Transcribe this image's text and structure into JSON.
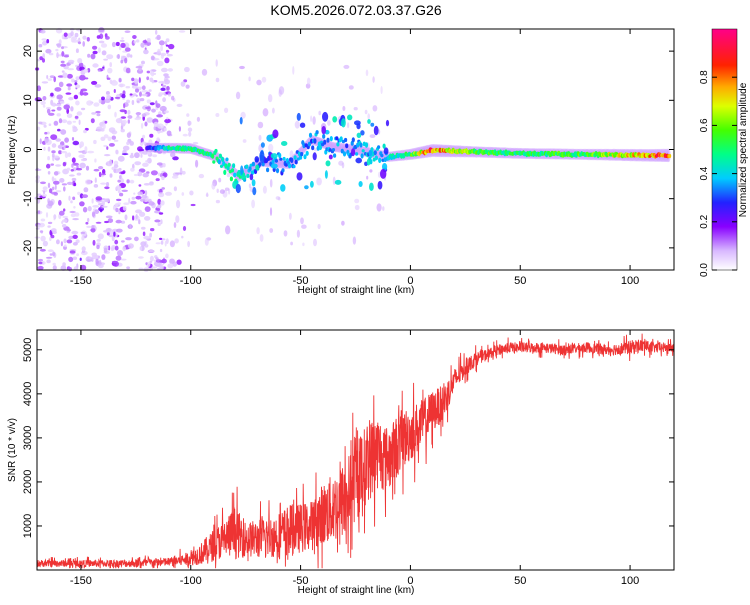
{
  "title": "KOM5.2026.072.03.37.G26",
  "chart_data": [
    {
      "type": "heatmap",
      "title": "KOM5.2026.072.03.37.G26",
      "xlabel": "Height of straight line (km)",
      "ylabel": "Frequency (Hz)",
      "xlim": [
        -170,
        120
      ],
      "ylim": [
        -24.5,
        24.5
      ],
      "xticks": [
        -150,
        -100,
        -50,
        0,
        50,
        100
      ],
      "yticks": [
        -20,
        -10,
        0,
        10,
        20
      ],
      "colorbar": {
        "label": "Normalized spectral amplitude",
        "range": [
          0,
          1
        ],
        "ticks": [
          0.0,
          0.2,
          0.4,
          0.6,
          0.8
        ]
      },
      "ridge": [
        {
          "x": -120,
          "f": 0.4,
          "a": 0.25
        },
        {
          "x": -110,
          "f": 0.3,
          "a": 0.45
        },
        {
          "x": -100,
          "f": 0.2,
          "a": 0.5
        },
        {
          "x": -88,
          "f": -1.5,
          "a": 0.45
        },
        {
          "x": -78,
          "f": -5.5,
          "a": 0.45
        },
        {
          "x": -68,
          "f": -2.5,
          "a": 0.3
        },
        {
          "x": -55,
          "f": -3.0,
          "a": 0.35
        },
        {
          "x": -45,
          "f": 2.0,
          "a": 0.35
        },
        {
          "x": -35,
          "f": 0.5,
          "a": 0.35
        },
        {
          "x": -25,
          "f": 0.0,
          "a": 0.35
        },
        {
          "x": -10,
          "f": -1.5,
          "a": 0.4
        },
        {
          "x": 0,
          "f": -1.0,
          "a": 0.55
        },
        {
          "x": 10,
          "f": -0.2,
          "a": 0.85
        },
        {
          "x": 30,
          "f": -0.5,
          "a": 0.55
        },
        {
          "x": 50,
          "f": -0.8,
          "a": 0.5
        },
        {
          "x": 80,
          "f": -1.0,
          "a": 0.55
        },
        {
          "x": 110,
          "f": -1.2,
          "a": 0.8
        },
        {
          "x": 118,
          "f": -1.2,
          "a": 0.9
        }
      ]
    },
    {
      "type": "line",
      "xlabel": "Height of straight line (km)",
      "ylabel": "SNR (10 * v/v)",
      "xlim": [
        -170,
        120
      ],
      "ylim": [
        0,
        5450
      ],
      "xticks": [
        -150,
        -100,
        -50,
        0,
        50,
        100
      ],
      "yticks": [
        1000,
        2000,
        3000,
        4000,
        5000
      ],
      "color": "#ee3333",
      "series": [
        {
          "name": "SNR",
          "x": [
            -170,
            -150,
            -130,
            -110,
            -100,
            -95,
            -90,
            -85,
            -80,
            -75,
            -70,
            -65,
            -60,
            -55,
            -50,
            -45,
            -40,
            -35,
            -30,
            -25,
            -20,
            -15,
            -10,
            -5,
            0,
            5,
            10,
            15,
            20,
            25,
            30,
            35,
            40,
            45,
            50,
            60,
            70,
            80,
            90,
            100,
            105,
            110,
            120
          ],
          "y": [
            150,
            150,
            150,
            180,
            260,
            380,
            550,
            700,
            850,
            700,
            700,
            750,
            800,
            900,
            950,
            1000,
            1250,
            1400,
            1600,
            2000,
            2400,
            2700,
            2500,
            2900,
            3100,
            3300,
            3600,
            3800,
            4300,
            4600,
            4800,
            4900,
            5000,
            5050,
            5050,
            5050,
            5000,
            5050,
            5000,
            5050,
            5100,
            5050,
            5050
          ],
          "noise": [
            100,
            100,
            110,
            130,
            200,
            320,
            450,
            550,
            750,
            500,
            550,
            600,
            650,
            750,
            700,
            700,
            900,
            1000,
            1100,
            1150,
            1150,
            1100,
            900,
            900,
            800,
            700,
            600,
            500,
            350,
            250,
            200,
            150,
            150,
            150,
            150,
            150,
            150,
            150,
            150,
            200,
            200,
            150,
            150
          ],
          "note": "noisy trace; values approximated as band center and half-width"
        }
      ]
    }
  ]
}
